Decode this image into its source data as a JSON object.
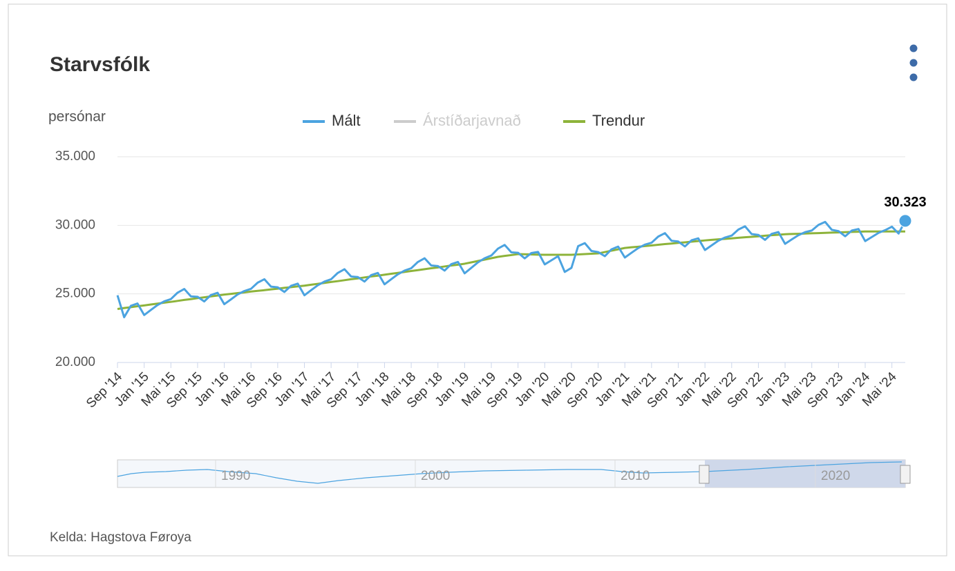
{
  "chart_data": {
    "type": "line",
    "title": "Starvsfólk",
    "y_label": "persónar",
    "source": "Kelda: Hagstova Føroya",
    "categories": [
      "Sep '14",
      null,
      null,
      null,
      "Jan '15",
      null,
      null,
      null,
      "Mai '15",
      null,
      null,
      null,
      "Sep '15",
      null,
      null,
      null,
      "Jan '16",
      null,
      null,
      null,
      "Mai '16",
      null,
      null,
      null,
      "Sep '16",
      null,
      null,
      null,
      "Jan '17",
      null,
      null,
      null,
      "Mai '17",
      null,
      null,
      null,
      "Sep '17",
      null,
      null,
      null,
      "Jan '18",
      null,
      null,
      null,
      "Mai '18",
      null,
      null,
      null,
      "Sep '18",
      null,
      null,
      null,
      "Jan '19",
      null,
      null,
      null,
      "Mai '19",
      null,
      null,
      null,
      "Sep '19",
      null,
      null,
      null,
      "Jan '20",
      null,
      null,
      null,
      "Mai '20",
      null,
      null,
      null,
      "Sep '20",
      null,
      null,
      null,
      "Jan '21",
      null,
      null,
      null,
      "Mai '21",
      null,
      null,
      null,
      "Sep '21",
      null,
      null,
      null,
      "Jan '22",
      null,
      null,
      null,
      "Mai '22",
      null,
      null,
      null,
      "Sep '22",
      null,
      null,
      null,
      "Jan '23",
      null,
      null,
      null,
      "Mai '23",
      null,
      null,
      null,
      "Sep '23",
      null,
      null,
      null,
      "Jan '24",
      null,
      null,
      null,
      "Mai '24",
      null,
      null
    ],
    "series": [
      {
        "name": "Mált",
        "color": "#4ba3e0",
        "values": [
          24900,
          23300,
          24130,
          24300,
          23460,
          23830,
          24190,
          24460,
          24620,
          25090,
          25360,
          24820,
          24790,
          24450,
          24920,
          25080,
          24250,
          24600,
          24960,
          25210,
          25370,
          25820,
          26070,
          25530,
          25480,
          25140,
          25590,
          25750,
          24900,
          25270,
          25630,
          25900,
          26070,
          26530,
          26800,
          26270,
          26230,
          25900,
          26370,
          26530,
          25700,
          26070,
          26430,
          26700,
          26870,
          27330,
          27600,
          27070,
          27030,
          26700,
          27170,
          27330,
          26500,
          26900,
          27300,
          27600,
          27800,
          28300,
          28570,
          28030,
          28000,
          27590,
          27980,
          28060,
          27150,
          27450,
          27750,
          26600,
          26900,
          28480,
          28700,
          28130,
          28050,
          27750,
          28250,
          28450,
          27650,
          28000,
          28340,
          28590,
          28730,
          29180,
          29430,
          28870,
          28820,
          28460,
          28910,
          29050,
          28200,
          28540,
          28880,
          29110,
          29250,
          29690,
          29930,
          29360,
          29300,
          28940,
          29380,
          29510,
          28650,
          28970,
          29280,
          29500,
          29620,
          30030,
          30250,
          29670,
          29580,
          29200,
          29620,
          29730,
          28850,
          29150,
          29450,
          29650,
          29900,
          29400,
          30323
        ],
        "value_labels": [
          null,
          null,
          null,
          null,
          null,
          null,
          null,
          null,
          null,
          null,
          null,
          null,
          null,
          null,
          null,
          null,
          null,
          null,
          null,
          null,
          null,
          null,
          null,
          null,
          null,
          null,
          null,
          null,
          null,
          null,
          null,
          null,
          null,
          null,
          null,
          null,
          null,
          null,
          null,
          null,
          null,
          null,
          null,
          null,
          null,
          null,
          null,
          null,
          null,
          null,
          null,
          null,
          null,
          null,
          null,
          null,
          null,
          null,
          null,
          null,
          null,
          null,
          null,
          null,
          null,
          null,
          null,
          null,
          null,
          null,
          null,
          null,
          null,
          null,
          null,
          null,
          null,
          null,
          null,
          null,
          null,
          null,
          null,
          null,
          null,
          null,
          null,
          null,
          null,
          null,
          null,
          null,
          null,
          null,
          null,
          null,
          null,
          null,
          null,
          null,
          null,
          null,
          null,
          null,
          null,
          null,
          null,
          null,
          null,
          null,
          null,
          null,
          null,
          null,
          null,
          null,
          null,
          null,
          "30.323"
        ]
      },
      {
        "name": "Árstíðarjavnað",
        "color": "#cccccc",
        "visible": false
      },
      {
        "name": "Trendur",
        "color": "#8db33a",
        "values": [
          23900,
          23970,
          24030,
          24100,
          24160,
          24230,
          24290,
          24360,
          24420,
          24490,
          24560,
          24620,
          24690,
          24750,
          24820,
          24880,
          24950,
          25000,
          25060,
          25110,
          25170,
          25220,
          25270,
          25330,
          25380,
          25440,
          25490,
          25550,
          25600,
          25670,
          25730,
          25800,
          25870,
          25930,
          26000,
          26070,
          26130,
          26200,
          26270,
          26330,
          26400,
          26470,
          26530,
          26600,
          26670,
          26730,
          26800,
          26870,
          26930,
          27000,
          27070,
          27130,
          27200,
          27300,
          27400,
          27500,
          27600,
          27700,
          27770,
          27830,
          27900,
          27890,
          27880,
          27860,
          27850,
          27850,
          27850,
          27850,
          27850,
          27880,
          27900,
          27930,
          27950,
          28050,
          28150,
          28250,
          28350,
          28400,
          28440,
          28490,
          28530,
          28580,
          28630,
          28670,
          28720,
          28760,
          28810,
          28850,
          28900,
          28940,
          28980,
          29010,
          29050,
          29090,
          29130,
          29160,
          29200,
          29240,
          29280,
          29310,
          29350,
          29370,
          29380,
          29400,
          29420,
          29430,
          29450,
          29470,
          29480,
          29500,
          29520,
          29530,
          29550,
          29550,
          29550,
          29550,
          29550,
          29550,
          29550
        ]
      }
    ],
    "ylim": [
      20000,
      35000
    ],
    "yticks": [
      {
        "value": 20000,
        "label": "20.000"
      },
      {
        "value": 25000,
        "label": "25.000"
      },
      {
        "value": 30000,
        "label": "30.000"
      },
      {
        "value": 35000,
        "label": "35.000"
      }
    ],
    "grid": true,
    "navigator": {
      "labels": [
        "1990",
        "2000",
        "2010",
        "2020"
      ]
    }
  }
}
